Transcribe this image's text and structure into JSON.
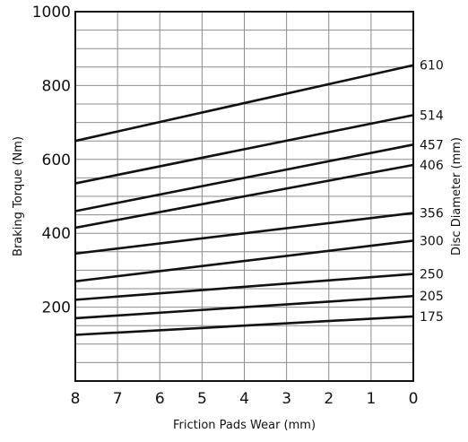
{
  "chart_data": {
    "type": "line",
    "title": "",
    "xlabel": "Friction Pads Wear (mm)",
    "ylabel": "Braking Torque (Nm)",
    "right_label": "Disc Diameter (mm)",
    "xlim": [
      8,
      0
    ],
    "x_reversed": true,
    "ylim": [
      0,
      1000
    ],
    "x_ticks": [
      "8",
      "7",
      "6",
      "5",
      "4",
      "3",
      "2",
      "1",
      "0"
    ],
    "y_ticks": [
      "1000",
      "800",
      "600",
      "400",
      "200"
    ],
    "grid": true,
    "series": [
      {
        "name": "610",
        "x": [
          8,
          0
        ],
        "y": [
          650,
          855
        ]
      },
      {
        "name": "514",
        "x": [
          8,
          0
        ],
        "y": [
          535,
          720
        ]
      },
      {
        "name": "457",
        "x": [
          8,
          0
        ],
        "y": [
          460,
          640
        ]
      },
      {
        "name": "406",
        "x": [
          8,
          0
        ],
        "y": [
          415,
          585
        ]
      },
      {
        "name": "356",
        "x": [
          8,
          0
        ],
        "y": [
          345,
          455
        ]
      },
      {
        "name": "300",
        "x": [
          8,
          0
        ],
        "y": [
          270,
          380
        ]
      },
      {
        "name": "250",
        "x": [
          8,
          0
        ],
        "y": [
          220,
          290
        ]
      },
      {
        "name": "205",
        "x": [
          8,
          0
        ],
        "y": [
          170,
          230
        ]
      },
      {
        "name": "175",
        "x": [
          8,
          0
        ],
        "y": [
          125,
          175
        ]
      }
    ]
  }
}
